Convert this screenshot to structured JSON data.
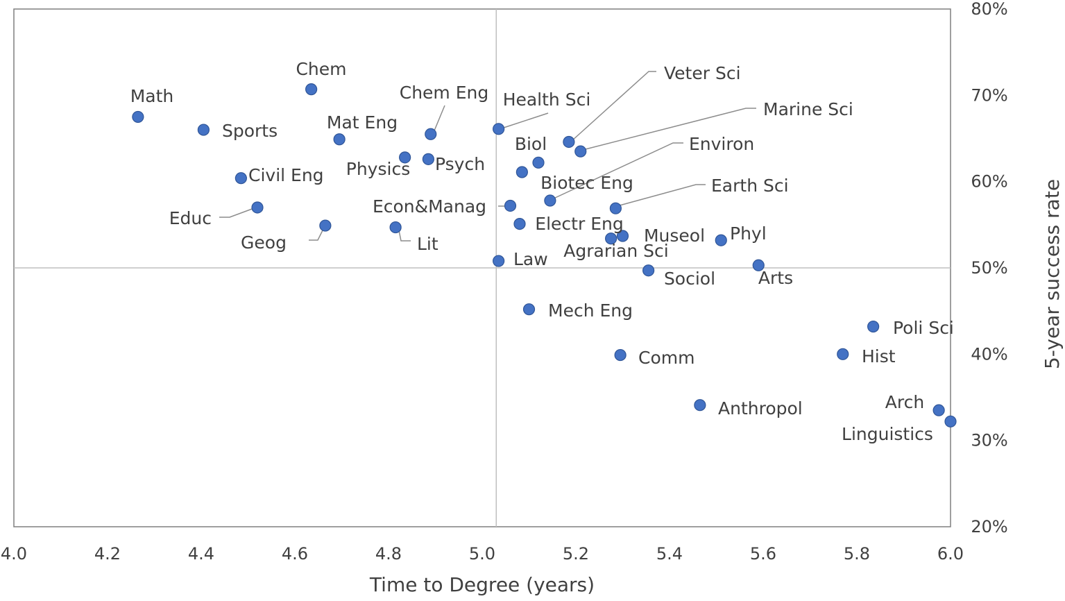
{
  "chart_data": {
    "type": "scatter",
    "title": "",
    "xlabel": "Time to Degree (years)",
    "ylabel": "5-year success rate",
    "xlim": [
      4.0,
      6.0
    ],
    "ylim": [
      0.2,
      0.8
    ],
    "x_ticks": [
      {
        "v": 4.0,
        "label": "4.0"
      },
      {
        "v": 4.2,
        "label": "4.2"
      },
      {
        "v": 4.4,
        "label": "4.4"
      },
      {
        "v": 4.6,
        "label": "4.6"
      },
      {
        "v": 4.8,
        "label": "4.8"
      },
      {
        "v": 5.0,
        "label": "5.0"
      },
      {
        "v": 5.2,
        "label": "5.2"
      },
      {
        "v": 5.4,
        "label": "5.4"
      },
      {
        "v": 5.6,
        "label": "5.6"
      },
      {
        "v": 5.8,
        "label": "5.8"
      },
      {
        "v": 6.0,
        "label": "6.0"
      }
    ],
    "y_ticks": [
      {
        "v": 0.2,
        "label": "20%"
      },
      {
        "v": 0.3,
        "label": "30%"
      },
      {
        "v": 0.4,
        "label": "40%"
      },
      {
        "v": 0.5,
        "label": "50%"
      },
      {
        "v": 0.6,
        "label": "60%"
      },
      {
        "v": 0.7,
        "label": "70%"
      },
      {
        "v": 0.8,
        "label": "80%"
      }
    ],
    "reference_lines": {
      "x": 5.03,
      "y": 0.5
    },
    "grid": false,
    "legend": "none",
    "point_color": "#4472c4",
    "points": [
      {
        "label": "Math",
        "x": 4.265,
        "y": 0.675
      },
      {
        "label": "Chem",
        "x": 4.635,
        "y": 0.707
      },
      {
        "label": "Sports",
        "x": 4.405,
        "y": 0.66
      },
      {
        "label": "Mat Eng",
        "x": 4.695,
        "y": 0.649
      },
      {
        "label": "Chem Eng",
        "x": 4.89,
        "y": 0.655
      },
      {
        "label": "Physics",
        "x": 4.835,
        "y": 0.628
      },
      {
        "label": "Psych",
        "x": 4.885,
        "y": 0.626
      },
      {
        "label": "Civil Eng",
        "x": 4.485,
        "y": 0.604
      },
      {
        "label": "Educ",
        "x": 4.52,
        "y": 0.57
      },
      {
        "label": "Geog",
        "x": 4.665,
        "y": 0.549
      },
      {
        "label": "Lit",
        "x": 4.815,
        "y": 0.547
      },
      {
        "label": "Health Sci",
        "x": 5.035,
        "y": 0.661
      },
      {
        "label": "Econ&Manag",
        "x": 5.06,
        "y": 0.572
      },
      {
        "label": "Law",
        "x": 5.035,
        "y": 0.508
      },
      {
        "label": "Biol",
        "x": 5.085,
        "y": 0.611
      },
      {
        "label": "Biotec Eng",
        "x": 5.12,
        "y": 0.622
      },
      {
        "label": "Electr Eng",
        "x": 5.08,
        "y": 0.551
      },
      {
        "label": "Veter Sci",
        "x": 5.185,
        "y": 0.646
      },
      {
        "label": "Marine Sci",
        "x": 5.21,
        "y": 0.635
      },
      {
        "label": "Environ",
        "x": 5.145,
        "y": 0.578
      },
      {
        "label": "Earth Sci",
        "x": 5.285,
        "y": 0.569
      },
      {
        "label": "Museol",
        "x": 5.3,
        "y": 0.537
      },
      {
        "label": "Agrarian Sci",
        "x": 5.275,
        "y": 0.534
      },
      {
        "label": "Sociol",
        "x": 5.355,
        "y": 0.497
      },
      {
        "label": "Phyl",
        "x": 5.51,
        "y": 0.532
      },
      {
        "label": "Arts",
        "x": 5.59,
        "y": 0.503
      },
      {
        "label": "Mech Eng",
        "x": 5.1,
        "y": 0.452
      },
      {
        "label": "Comm",
        "x": 5.295,
        "y": 0.399
      },
      {
        "label": "Anthropol",
        "x": 5.465,
        "y": 0.341
      },
      {
        "label": "Poli Sci",
        "x": 5.835,
        "y": 0.432
      },
      {
        "label": "Hist",
        "x": 5.77,
        "y": 0.4
      },
      {
        "label": "Arch",
        "x": 5.975,
        "y": 0.335
      },
      {
        "label": "Linguistics",
        "x": 6.0,
        "y": 0.322
      }
    ]
  }
}
